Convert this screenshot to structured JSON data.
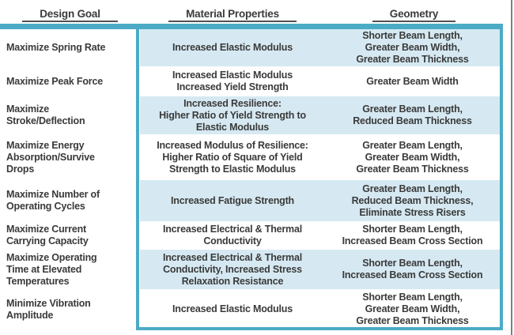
{
  "table": {
    "headers": {
      "design_goal": "Design Goal",
      "material_properties": "Material Properties",
      "geometry": "Geometry"
    },
    "rows": [
      {
        "goal": "Maximize Spring Rate",
        "material": "Increased Elastic Modulus",
        "geometry": "Shorter Beam Length,\nGreater Beam Width,\nGreater Beam Thickness"
      },
      {
        "goal": "Maximize Peak Force",
        "material": "Increased Elastic Modulus\nIncreased Yield Strength",
        "geometry": "Greater Beam Width"
      },
      {
        "goal": "Maximize\nStroke/Deflection",
        "material": "Increased Resilience:\nHigher Ratio of Yield Strength to\nElastic Modulus",
        "geometry": "Greater Beam Length,\nReduced Beam Thickness"
      },
      {
        "goal": "Maximize Energy\nAbsorption/Survive\nDrops",
        "material": "Increased Modulus of Resilience:\nHigher Ratio of Square of Yield\nStrength to Elastic Modulus",
        "geometry": "Greater Beam Length,\nGreater Beam Width,\nGreater Beam Thickness"
      },
      {
        "goal": "Maximize Number of\nOperating Cycles",
        "material": "Increased Fatigue Strength",
        "geometry": "Greater Beam Length,\nReduced Beam Thickness,\nEliminate Stress Risers"
      },
      {
        "goal": "Maximize Current\nCarrying Capacity",
        "material": "Increased Electrical & Thermal\nConductivity",
        "geometry": "Shorter Beam Length,\nIncreased Beam Cross Section"
      },
      {
        "goal": "Maximize Operating\nTime at Elevated\nTemperatures",
        "material": "Increased Electrical & Thermal\nConductivity, Increased Stress\nRelaxation Resistance",
        "geometry": "Shorter Beam Length,\nIncreased Beam Cross Section"
      },
      {
        "goal": "Minimize Vibration\nAmplitude",
        "material": "Increased Elastic Modulus",
        "geometry": "Shorter Beam Length,\nGreater Beam Width,\nGreater Beam Thickness"
      }
    ]
  },
  "colors": {
    "accent_teal": "#4babc6",
    "row_highlight_blue": "#d6e9f2",
    "header_underline": "#515151",
    "body_text": "#3a3a3a",
    "page_edge_gray": "#7f7f7f"
  }
}
